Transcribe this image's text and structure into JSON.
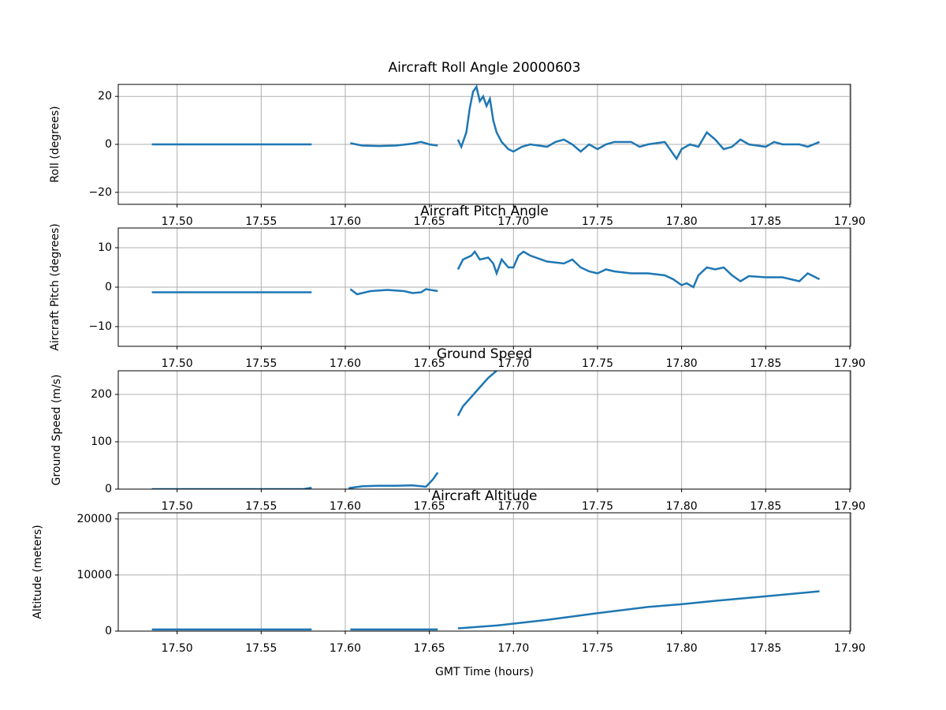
{
  "chart_data": [
    {
      "type": "line",
      "title": "Aircraft Roll Angle 20000603",
      "ylabel": "Roll (degrees)",
      "color": "#1f77b4",
      "grid": true,
      "xlim": [
        17.465,
        17.9005
      ],
      "ylim": [
        -25,
        25
      ],
      "xticks": [
        {
          "value": 17.5,
          "label": "17.50"
        },
        {
          "value": 17.55,
          "label": "17.55"
        },
        {
          "value": 17.6,
          "label": "17.60"
        },
        {
          "value": 17.65,
          "label": "17.65"
        },
        {
          "value": 17.7,
          "label": "17.70"
        },
        {
          "value": 17.75,
          "label": "17.75"
        },
        {
          "value": 17.8,
          "label": "17.80"
        },
        {
          "value": 17.85,
          "label": "17.85"
        },
        {
          "value": 17.9,
          "label": "17.90"
        }
      ],
      "yticks": [
        {
          "value": -20,
          "label": "−20"
        },
        0,
        20
      ],
      "x": [
        17.485,
        17.58,
        17.59,
        17.603,
        17.61,
        17.62,
        17.63,
        17.64,
        17.645,
        17.65,
        17.655,
        17.66,
        17.667,
        17.669,
        17.672,
        17.674,
        17.676,
        17.678,
        17.68,
        17.682,
        17.684,
        17.686,
        17.688,
        17.69,
        17.693,
        17.697,
        17.7,
        17.705,
        17.71,
        17.72,
        17.725,
        17.73,
        17.735,
        17.74,
        17.745,
        17.75,
        17.755,
        17.76,
        17.77,
        17.775,
        17.78,
        17.79,
        17.795,
        17.797,
        17.8,
        17.805,
        17.81,
        17.815,
        17.82,
        17.825,
        17.83,
        17.835,
        17.84,
        17.85,
        17.855,
        17.86,
        17.87,
        17.875,
        17.882
      ],
      "values": [
        0,
        0,
        null,
        0.5,
        -0.5,
        -0.7,
        -0.5,
        0.3,
        1,
        0,
        -0.5,
        null,
        2,
        -1,
        5,
        15,
        22,
        24,
        18,
        20,
        16,
        19,
        10,
        5,
        1,
        -2,
        -3,
        -1,
        0,
        -1,
        1,
        2,
        0,
        -3,
        0,
        -2,
        0,
        1,
        1,
        -1,
        0,
        1,
        -4,
        -6,
        -2,
        0,
        -1,
        5,
        2,
        -2,
        -1,
        2,
        0,
        -1,
        1,
        0,
        0,
        -1,
        1
      ]
    },
    {
      "type": "line",
      "title": "Aircraft Pitch Angle",
      "ylabel": "Aircraft Pitch (degrees)",
      "color": "#1f77b4",
      "grid": true,
      "xlim": [
        17.465,
        17.9005
      ],
      "ylim": [
        -15,
        15
      ],
      "xticks": [
        {
          "value": 17.5,
          "label": "17.50"
        },
        {
          "value": 17.55,
          "label": "17.55"
        },
        {
          "value": 17.6,
          "label": "17.60"
        },
        {
          "value": 17.65,
          "label": "17.65"
        },
        {
          "value": 17.7,
          "label": "17.70"
        },
        {
          "value": 17.75,
          "label": "17.75"
        },
        {
          "value": 17.8,
          "label": "17.80"
        },
        {
          "value": 17.85,
          "label": "17.85"
        },
        {
          "value": 17.9,
          "label": "17.90"
        }
      ],
      "yticks": [
        {
          "value": -10,
          "label": "−10"
        },
        0,
        10
      ],
      "x": [
        17.485,
        17.58,
        17.59,
        17.603,
        17.607,
        17.615,
        17.625,
        17.635,
        17.64,
        17.645,
        17.648,
        17.655,
        17.66,
        17.667,
        17.67,
        17.675,
        17.677,
        17.68,
        17.685,
        17.688,
        17.69,
        17.693,
        17.697,
        17.7,
        17.703,
        17.706,
        17.71,
        17.72,
        17.73,
        17.735,
        17.74,
        17.745,
        17.75,
        17.755,
        17.76,
        17.77,
        17.78,
        17.79,
        17.795,
        17.8,
        17.803,
        17.807,
        17.81,
        17.815,
        17.82,
        17.825,
        17.83,
        17.835,
        17.84,
        17.85,
        17.86,
        17.87,
        17.875,
        17.882
      ],
      "values": [
        -1.3,
        -1.3,
        null,
        -0.5,
        -1.8,
        -1,
        -0.7,
        -1,
        -1.5,
        -1.3,
        -0.5,
        -1,
        null,
        4.5,
        7,
        8,
        9,
        7,
        7.5,
        6,
        3.5,
        7,
        5,
        5,
        8,
        9,
        8,
        6.5,
        6,
        7,
        5,
        4,
        3.5,
        4.5,
        4,
        3.5,
        3.5,
        3,
        2,
        0.5,
        1,
        0,
        3,
        5,
        4.5,
        5,
        3,
        1.5,
        2.8,
        2.5,
        2.5,
        1.5,
        3.5,
        2
      ]
    },
    {
      "type": "line",
      "title": "Ground Speed",
      "ylabel": "Ground Speed (m/s)",
      "color": "#1f77b4",
      "grid": true,
      "xlim": [
        17.465,
        17.9005
      ],
      "ylim": [
        0,
        250
      ],
      "xticks": [
        {
          "value": 17.5,
          "label": "17.50"
        },
        {
          "value": 17.55,
          "label": "17.55"
        },
        {
          "value": 17.6,
          "label": "17.60"
        },
        {
          "value": 17.65,
          "label": "17.65"
        },
        {
          "value": 17.7,
          "label": "17.70"
        },
        {
          "value": 17.75,
          "label": "17.75"
        },
        {
          "value": 17.8,
          "label": "17.80"
        },
        {
          "value": 17.85,
          "label": "17.85"
        },
        {
          "value": 17.9,
          "label": "17.90"
        }
      ],
      "yticks": [
        0,
        100,
        200
      ],
      "x": [
        17.485,
        17.575,
        17.58,
        17.59,
        17.602,
        17.61,
        17.62,
        17.63,
        17.64,
        17.648,
        17.652,
        17.655,
        17.66,
        17.667,
        17.67,
        17.675,
        17.68,
        17.685,
        17.69
      ],
      "values": [
        0,
        0,
        3,
        null,
        2,
        6,
        7,
        7,
        8,
        5,
        20,
        35,
        null,
        155,
        175,
        195,
        215,
        235,
        250
      ]
    },
    {
      "type": "line",
      "title": "Aircraft Altitude",
      "ylabel": "Altitude (meters)",
      "xlabel": "GMT Time (hours)",
      "color": "#1f77b4",
      "grid": true,
      "xlim": [
        17.465,
        17.9005
      ],
      "ylim": [
        0,
        21100
      ],
      "xticks": [
        {
          "value": 17.5,
          "label": "17.50"
        },
        {
          "value": 17.55,
          "label": "17.55"
        },
        {
          "value": 17.6,
          "label": "17.60"
        },
        {
          "value": 17.65,
          "label": "17.65"
        },
        {
          "value": 17.7,
          "label": "17.70"
        },
        {
          "value": 17.75,
          "label": "17.75"
        },
        {
          "value": 17.8,
          "label": "17.80"
        },
        {
          "value": 17.85,
          "label": "17.85"
        },
        {
          "value": 17.9,
          "label": "17.90"
        }
      ],
      "yticks": [
        0,
        10000,
        20000
      ],
      "x": [
        17.485,
        17.58,
        17.59,
        17.603,
        17.655,
        17.66,
        17.667,
        17.69,
        17.72,
        17.75,
        17.78,
        17.8,
        17.82,
        17.85,
        17.882
      ],
      "values": [
        300,
        300,
        null,
        300,
        300,
        null,
        500,
        1000,
        2000,
        3200,
        4300,
        4800,
        5400,
        6200,
        7100
      ]
    }
  ]
}
